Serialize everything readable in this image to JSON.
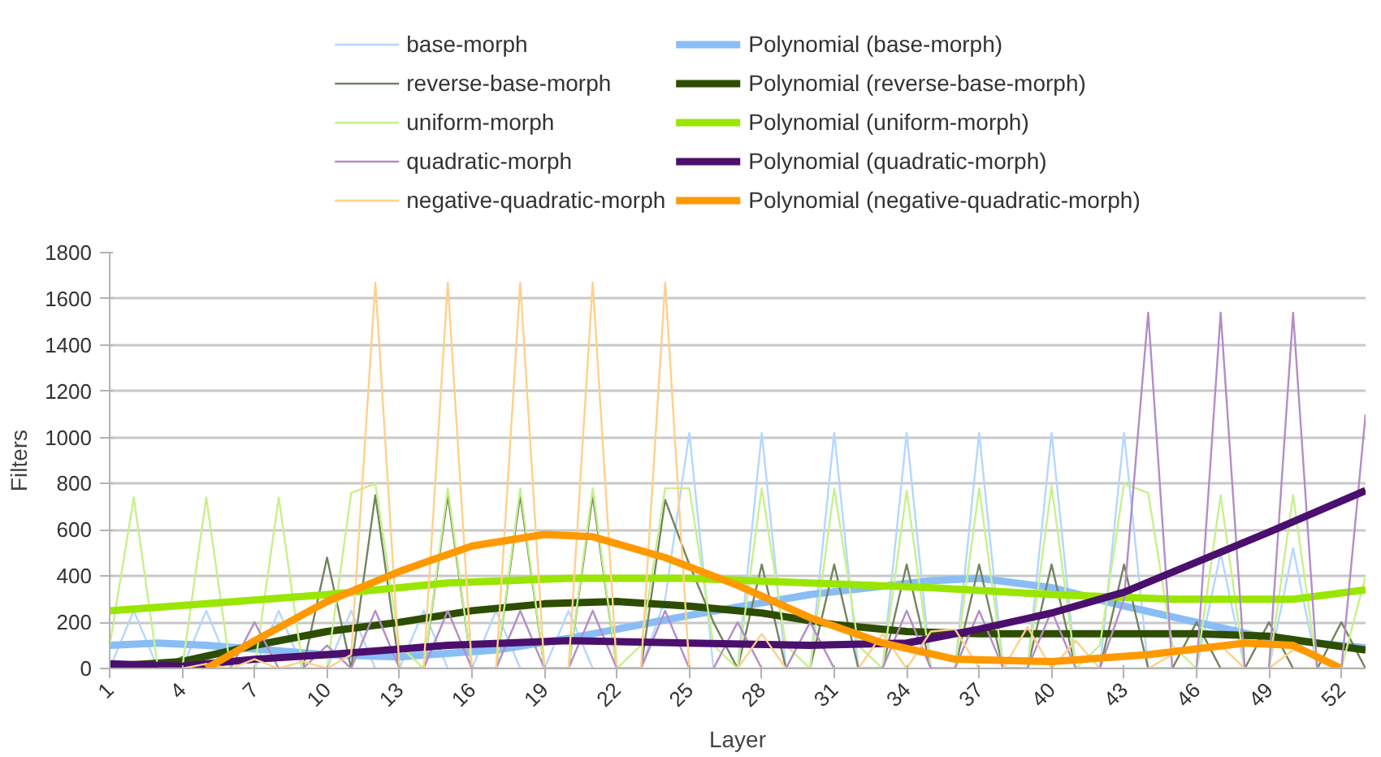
{
  "chart_data": {
    "type": "line",
    "xlabel": "Layer",
    "ylabel": "Filters",
    "x": [
      1,
      2,
      3,
      4,
      5,
      6,
      7,
      8,
      9,
      10,
      11,
      12,
      13,
      14,
      15,
      16,
      17,
      18,
      19,
      20,
      21,
      22,
      23,
      24,
      25,
      26,
      27,
      28,
      29,
      30,
      31,
      32,
      33,
      34,
      35,
      36,
      37,
      38,
      39,
      40,
      41,
      42,
      43,
      44,
      45,
      46,
      47,
      48,
      49,
      50,
      51,
      52,
      53
    ],
    "xlim": [
      1,
      53
    ],
    "xticks": [
      1,
      4,
      7,
      10,
      13,
      16,
      19,
      22,
      25,
      28,
      31,
      34,
      37,
      40,
      43,
      46,
      49,
      52
    ],
    "ylim": [
      0,
      1800
    ],
    "yticks": [
      0,
      200,
      400,
      600,
      800,
      1000,
      1200,
      1400,
      1600,
      1800
    ],
    "grid": "y",
    "legend": "top",
    "series": [
      {
        "name": "base-morph",
        "color": "#b4d7ff",
        "values": [
          0,
          250,
          0,
          0,
          250,
          0,
          0,
          250,
          0,
          0,
          250,
          0,
          0,
          250,
          0,
          0,
          250,
          0,
          0,
          250,
          0,
          0,
          0,
          300,
          1020,
          0,
          0,
          1020,
          0,
          0,
          1020,
          0,
          0,
          1020,
          0,
          0,
          1020,
          0,
          0,
          1020,
          0,
          0,
          1020,
          0,
          0,
          0,
          500,
          0,
          0,
          520,
          0,
          0,
          0
        ]
      },
      {
        "name": "Polynomial (base-morph)",
        "color": "#89bdf5",
        "x": [
          1,
          3,
          5,
          10,
          13,
          17,
          20,
          25,
          30,
          35,
          37,
          40,
          43,
          46,
          49,
          53
        ],
        "values": [
          100,
          110,
          100,
          60,
          50,
          80,
          130,
          230,
          320,
          380,
          390,
          350,
          270,
          200,
          130,
          90
        ]
      },
      {
        "name": "reverse-base-morph",
        "color": "#72845f",
        "values": [
          0,
          0,
          0,
          50,
          0,
          0,
          0,
          0,
          0,
          480,
          0,
          750,
          0,
          0,
          750,
          0,
          0,
          750,
          0,
          0,
          750,
          0,
          0,
          730,
          450,
          200,
          0,
          450,
          0,
          0,
          450,
          0,
          0,
          450,
          0,
          0,
          450,
          0,
          0,
          450,
          0,
          0,
          450,
          0,
          0,
          200,
          0,
          0,
          200,
          0,
          0,
          200,
          0
        ]
      },
      {
        "name": "Polynomial (reverse-base-morph)",
        "color": "#2d4d00",
        "x": [
          1,
          4,
          7,
          10,
          13,
          16,
          19,
          22,
          25,
          28,
          31,
          34,
          37,
          40,
          43,
          46,
          49,
          53
        ],
        "values": [
          10,
          30,
          100,
          160,
          200,
          250,
          280,
          290,
          270,
          240,
          190,
          160,
          150,
          150,
          150,
          150,
          140,
          80
        ]
      },
      {
        "name": "uniform-morph",
        "color": "#c8f08c",
        "values": [
          100,
          740,
          0,
          0,
          740,
          0,
          0,
          740,
          0,
          0,
          760,
          800,
          100,
          0,
          780,
          0,
          0,
          780,
          0,
          0,
          780,
          0,
          100,
          780,
          780,
          100,
          0,
          780,
          100,
          0,
          780,
          100,
          0,
          770,
          0,
          0,
          780,
          0,
          0,
          790,
          0,
          100,
          800,
          760,
          100,
          0,
          750,
          0,
          0,
          750,
          0,
          0,
          400
        ]
      },
      {
        "name": "Polynomial (uniform-morph)",
        "color": "#99e600",
        "x": [
          1,
          5,
          10,
          15,
          20,
          25,
          30,
          35,
          40,
          45,
          50,
          53
        ],
        "values": [
          250,
          280,
          320,
          370,
          390,
          390,
          370,
          350,
          320,
          300,
          300,
          340
        ]
      },
      {
        "name": "quadratic-morph",
        "color": "#b48cc8",
        "values": [
          0,
          0,
          0,
          0,
          0,
          0,
          200,
          0,
          0,
          100,
          0,
          250,
          0,
          0,
          250,
          0,
          0,
          250,
          0,
          0,
          250,
          0,
          0,
          250,
          0,
          0,
          200,
          0,
          0,
          200,
          0,
          0,
          0,
          250,
          0,
          0,
          250,
          0,
          0,
          250,
          0,
          0,
          300,
          1540,
          0,
          0,
          1540,
          0,
          0,
          1540,
          0,
          0,
          1100
        ]
      },
      {
        "name": "Polynomial (quadratic-morph)",
        "color": "#4b0f6e",
        "x": [
          1,
          4,
          7,
          10,
          15,
          20,
          25,
          30,
          34,
          37,
          40,
          43,
          46,
          49,
          53
        ],
        "values": [
          20,
          10,
          40,
          60,
          100,
          120,
          110,
          100,
          110,
          170,
          240,
          330,
          460,
          590,
          770
        ]
      },
      {
        "name": "negative-quadratic-morph",
        "color": "#ffd08a",
        "values": [
          null,
          null,
          0,
          0,
          20,
          0,
          40,
          0,
          30,
          0,
          60,
          1670,
          0,
          0,
          1670,
          0,
          0,
          1670,
          0,
          0,
          1670,
          0,
          0,
          1670,
          0,
          0,
          0,
          150,
          0,
          0,
          0,
          0,
          150,
          0,
          160,
          170,
          0,
          0,
          180,
          0,
          120,
          0,
          0,
          0,
          60,
          80,
          100,
          0,
          0,
          80,
          50,
          0,
          0
        ]
      },
      {
        "name": "Polynomial (negative-quadratic-morph)",
        "color": "#ff9900",
        "x": [
          5,
          7,
          10,
          13,
          16,
          19,
          21,
          24,
          27,
          30,
          33,
          36,
          40,
          44,
          48,
          50,
          52
        ],
        "values": [
          0,
          120,
          290,
          420,
          530,
          580,
          570,
          480,
          360,
          220,
          110,
          40,
          30,
          60,
          110,
          100,
          0
        ]
      }
    ]
  }
}
